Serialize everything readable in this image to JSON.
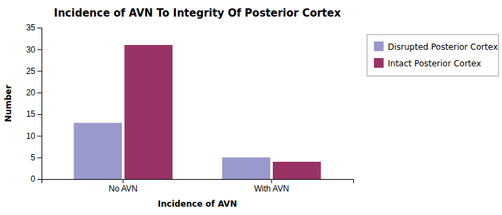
{
  "chart_data": {
    "type": "bar",
    "title": "Incidence of AVN To Integrity Of Posterior Cortex",
    "xlabel": "Incidence of AVN",
    "ylabel": "Number",
    "categories": [
      "No AVN",
      "With AVN"
    ],
    "series": [
      {
        "name": "Disrupted Posterior Cortex",
        "color": "#9999CC",
        "values": [
          13,
          5
        ]
      },
      {
        "name": "Intact Posterior Cortex",
        "color": "#993366",
        "values": [
          31,
          4
        ]
      }
    ],
    "ylim": [
      0,
      35
    ],
    "yticks": [
      0,
      5,
      10,
      15,
      20,
      25,
      30,
      35
    ],
    "grid": false,
    "legend": "right"
  }
}
